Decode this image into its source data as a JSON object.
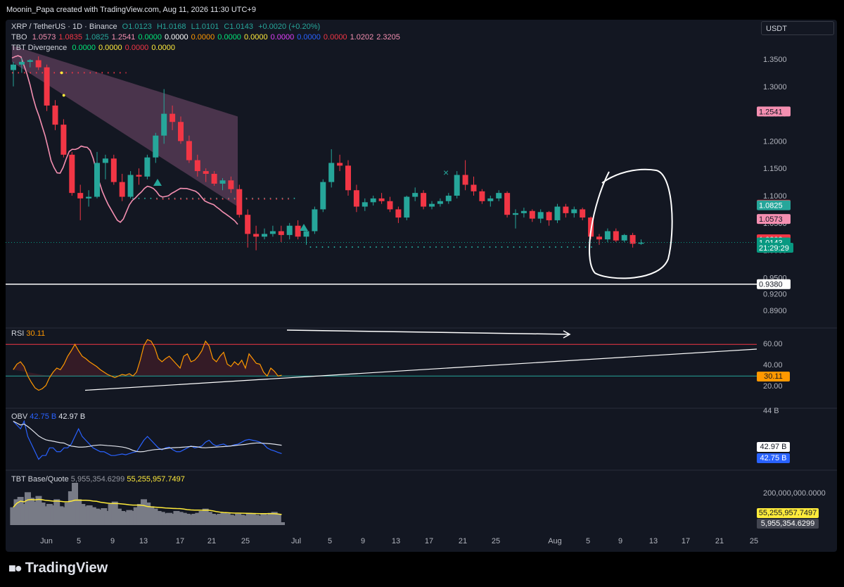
{
  "header": {
    "credit": "Moonin_Papa created with TradingView.com, Aug 11, 2026 11:30 UTC+9",
    "currency": "USDT"
  },
  "legend": {
    "symbol": "XRP / TetherUS · 1D · Binance",
    "ohlc": {
      "o": "O1.0123",
      "h": "H1.0168",
      "l": "L1.0101",
      "c": "C1.0143",
      "chg": "+0.0020 (+0.20%)"
    },
    "tbo_name": "TBO",
    "tbo_values": [
      "1.0573",
      "1.0835",
      "1.0825",
      "1.2541",
      "0.0000",
      "0.0000",
      "0.0000",
      "0.0000",
      "0.0000",
      "0.0000",
      "0.0000",
      "0.0000",
      "1.0202",
      "2.3205"
    ],
    "tbt_name": "TBT Divergence",
    "tbt_values": [
      "0.0000",
      "0.0000",
      "0.0000",
      "0.0000"
    ]
  },
  "price_axis": [
    "1.3500",
    "1.3000",
    "1.2500",
    "1.2000",
    "1.1500",
    "1.1000",
    "1.0500",
    "1.0000",
    "0.9500",
    "0.9200",
    "0.8900"
  ],
  "price_tags": [
    {
      "label": "1.2541",
      "value": 1.2541,
      "bg": "#f48fb1",
      "fg": "#131722"
    },
    {
      "label": "1.0835",
      "value": 1.0835,
      "bg": "#f23645",
      "fg": "#ffffff"
    },
    {
      "label": "1.0825",
      "value": 1.0825,
      "bg": "#26a69a",
      "fg": "#ffffff"
    },
    {
      "label": "1.0573",
      "value": 1.0573,
      "bg": "#f48fb1",
      "fg": "#131722"
    },
    {
      "label": "1.0202",
      "value": 1.0202,
      "bg": "#f23645",
      "fg": "#ffffff"
    },
    {
      "label": "1.0143",
      "value": 1.0143,
      "bg": "#089981",
      "fg": "#ffffff"
    },
    {
      "label": "21:29:29",
      "value": 1.0047,
      "bg": "#089981",
      "fg": "#ffffff"
    },
    {
      "label": "0.9380",
      "value": 0.938,
      "bg": "#ffffff",
      "fg": "#131722"
    }
  ],
  "rsi": {
    "title": "RSI",
    "value": "30.11",
    "axis": [
      "60.00",
      "40.00",
      "20.00"
    ],
    "tag": "30.11"
  },
  "obv": {
    "title": "OBV",
    "v1": "42.75 B",
    "v2": "42.97 B",
    "axis": [
      "44 B"
    ],
    "tag1": "42.97 B",
    "tag2": "42.75 B"
  },
  "vol": {
    "title": "TBT Base/Quote",
    "v1": "5,955,354.6299",
    "v2": "55,255,957.7497",
    "axis": [
      "200,000,000.0000"
    ],
    "tag1": "55,255,957.7497",
    "tag2": "5,955,354.6299"
  },
  "time_axis": [
    "Jun",
    "5",
    "9",
    "13",
    "17",
    "21",
    "25",
    "Jul",
    "5",
    "9",
    "13",
    "17",
    "21",
    "25",
    "Aug",
    "5",
    "9",
    "13",
    "17",
    "21",
    "25"
  ],
  "brand": "TradingView",
  "colors": {
    "up": "#26a69a",
    "down": "#f23645",
    "ma": "#f48fb1",
    "rsi": "#ff9800",
    "obv": "#2962ff",
    "obv_ma": "#e0e3eb",
    "vol_ma": "#ffeb3b",
    "bg": "#131722"
  },
  "chart_data": {
    "type": "candlestick",
    "title": "XRP / TetherUS · 1D · Binance",
    "x_start": "Jun 1",
    "ylim": [
      0.87,
      1.38
    ],
    "ohlc": [
      [
        1.33,
        1.345,
        1.3,
        1.34
      ],
      [
        1.34,
        1.352,
        1.325,
        1.345
      ],
      [
        1.345,
        1.35,
        1.335,
        1.348
      ],
      [
        1.348,
        1.355,
        1.33,
        1.335
      ],
      [
        1.335,
        1.34,
        1.255,
        1.265
      ],
      [
        1.265,
        1.275,
        1.22,
        1.23
      ],
      [
        1.23,
        1.24,
        1.17,
        1.175
      ],
      [
        1.175,
        1.18,
        1.1,
        1.105
      ],
      [
        1.105,
        1.12,
        1.055,
        1.095
      ],
      [
        1.095,
        1.11,
        1.08,
        1.098
      ],
      [
        1.098,
        1.18,
        1.095,
        1.16
      ],
      [
        1.16,
        1.175,
        1.13,
        1.168
      ],
      [
        1.168,
        1.175,
        1.12,
        1.125
      ],
      [
        1.125,
        1.14,
        1.09,
        1.098
      ],
      [
        1.098,
        1.145,
        1.095,
        1.138
      ],
      [
        1.138,
        1.15,
        1.12,
        1.135
      ],
      [
        1.135,
        1.175,
        1.13,
        1.17
      ],
      [
        1.17,
        1.215,
        1.16,
        1.21
      ],
      [
        1.21,
        1.295,
        1.195,
        1.25
      ],
      [
        1.25,
        1.265,
        1.22,
        1.235
      ],
      [
        1.235,
        1.245,
        1.195,
        1.2
      ],
      [
        1.2,
        1.21,
        1.16,
        1.165
      ],
      [
        1.165,
        1.175,
        1.135,
        1.145
      ],
      [
        1.145,
        1.15,
        1.125,
        1.14
      ],
      [
        1.14,
        1.145,
        1.118,
        1.122
      ],
      [
        1.122,
        1.132,
        1.11,
        1.128
      ],
      [
        1.128,
        1.135,
        1.105,
        1.112
      ],
      [
        1.112,
        1.12,
        1.06,
        1.065
      ],
      [
        1.065,
        1.075,
        1.005,
        1.03
      ],
      [
        1.03,
        1.045,
        1.0,
        1.025
      ],
      [
        1.025,
        1.04,
        1.02,
        1.03
      ],
      [
        1.03,
        1.045,
        1.025,
        1.035
      ],
      [
        1.035,
        1.045,
        1.015,
        1.028
      ],
      [
        1.028,
        1.05,
        1.02,
        1.045
      ],
      [
        1.045,
        1.055,
        1.02,
        1.025
      ],
      [
        1.025,
        1.04,
        1.01,
        1.035
      ],
      [
        1.035,
        1.08,
        1.03,
        1.075
      ],
      [
        1.075,
        1.13,
        1.07,
        1.125
      ],
      [
        1.125,
        1.185,
        1.115,
        1.16
      ],
      [
        1.16,
        1.175,
        1.145,
        1.155
      ],
      [
        1.155,
        1.165,
        1.1,
        1.11
      ],
      [
        1.11,
        1.12,
        1.07,
        1.08
      ],
      [
        1.08,
        1.095,
        1.072,
        1.088
      ],
      [
        1.088,
        1.1,
        1.082,
        1.095
      ],
      [
        1.095,
        1.105,
        1.085,
        1.09
      ],
      [
        1.09,
        1.098,
        1.07,
        1.075
      ],
      [
        1.075,
        1.08,
        1.05,
        1.06
      ],
      [
        1.06,
        1.1,
        1.055,
        1.098
      ],
      [
        1.098,
        1.115,
        1.09,
        1.105
      ],
      [
        1.105,
        1.11,
        1.075,
        1.08
      ],
      [
        1.08,
        1.09,
        1.075,
        1.085
      ],
      [
        1.085,
        1.095,
        1.08,
        1.09
      ],
      [
        1.09,
        1.105,
        1.085,
        1.1
      ],
      [
        1.1,
        1.145,
        1.095,
        1.138
      ],
      [
        1.138,
        1.165,
        1.11,
        1.12
      ],
      [
        1.12,
        1.135,
        1.1,
        1.108
      ],
      [
        1.108,
        1.112,
        1.085,
        1.09
      ],
      [
        1.09,
        1.1,
        1.08,
        1.095
      ],
      [
        1.095,
        1.11,
        1.09,
        1.105
      ],
      [
        1.105,
        1.108,
        1.06,
        1.065
      ],
      [
        1.065,
        1.075,
        1.04,
        1.068
      ],
      [
        1.068,
        1.078,
        1.06,
        1.072
      ],
      [
        1.072,
        1.075,
        1.052,
        1.058
      ],
      [
        1.058,
        1.075,
        1.05,
        1.07
      ],
      [
        1.07,
        1.072,
        1.045,
        1.055
      ],
      [
        1.055,
        1.085,
        1.05,
        1.08
      ],
      [
        1.08,
        1.085,
        1.06,
        1.068
      ],
      [
        1.068,
        1.08,
        1.06,
        1.075
      ],
      [
        1.075,
        1.078,
        1.055,
        1.06
      ],
      [
        1.06,
        1.062,
        1.02,
        1.025
      ],
      [
        1.025,
        1.03,
        1.01,
        1.02
      ],
      [
        1.02,
        1.04,
        1.015,
        1.035
      ],
      [
        1.035,
        1.04,
        1.015,
        1.018
      ],
      [
        1.018,
        1.03,
        1.015,
        1.028
      ],
      [
        1.028,
        1.032,
        1.005,
        1.012
      ],
      [
        1.012,
        1.02,
        1.01,
        1.014
      ]
    ],
    "horizontal_line": 0.938,
    "rsi": [
      38,
      45,
      48,
      42,
      30,
      22,
      15,
      12,
      14,
      18,
      28,
      35,
      40,
      38,
      45,
      55,
      62,
      70,
      62,
      55,
      52,
      48,
      45,
      42,
      38,
      35,
      32,
      30,
      28,
      30,
      32,
      31,
      33,
      30,
      35,
      50,
      68,
      76,
      74,
      66,
      52,
      48,
      52,
      55,
      50,
      45,
      40,
      55,
      58,
      48,
      50,
      55,
      62,
      74,
      68,
      52,
      48,
      55,
      60,
      45,
      42,
      48,
      44,
      50,
      40,
      58,
      52,
      46,
      45,
      35,
      30,
      40,
      36,
      30,
      31
    ],
    "obv": [
      43.6,
      43.5,
      43.4,
      43.6,
      43.2,
      43.0,
      42.8,
      42.6,
      42.7,
      42.7,
      42.9,
      42.9,
      42.8,
      42.8,
      42.9,
      42.9,
      43.0,
      43.2,
      43.4,
      43.2,
      43.1,
      43.0,
      42.9,
      42.85,
      42.8,
      42.8,
      42.75,
      42.7,
      42.7,
      42.72,
      42.74,
      42.72,
      42.75,
      42.78,
      42.8,
      42.95,
      43.1,
      43.2,
      43.1,
      43.0,
      42.9,
      42.85,
      42.9,
      42.92,
      42.85,
      42.8,
      42.8,
      42.85,
      42.9,
      42.95,
      42.9,
      42.92,
      42.95,
      43.05,
      43.1,
      43.0,
      42.95,
      42.98,
      43.0,
      42.95,
      42.95,
      42.98,
      43.0,
      43.05,
      43.1,
      43.12,
      43.1,
      43.08,
      43.05,
      43.0,
      42.9,
      42.85,
      42.82,
      42.78,
      42.75
    ],
    "volume": [
      38,
      55,
      60,
      45,
      70,
      58,
      50,
      62,
      48,
      40,
      45,
      42,
      55,
      40,
      38,
      48,
      72,
      90,
      55,
      45,
      40,
      42,
      38,
      35,
      33,
      36,
      30,
      45,
      50,
      35,
      30,
      28,
      32,
      30,
      38,
      45,
      55,
      48,
      40,
      35,
      30,
      28,
      25,
      26,
      24,
      30,
      28,
      26,
      24,
      22,
      24,
      26,
      30,
      35,
      28,
      24,
      22,
      24,
      26,
      25,
      22,
      20,
      24,
      22,
      20,
      26,
      24,
      22,
      20,
      24,
      22,
      26,
      28,
      24,
      6
    ]
  }
}
